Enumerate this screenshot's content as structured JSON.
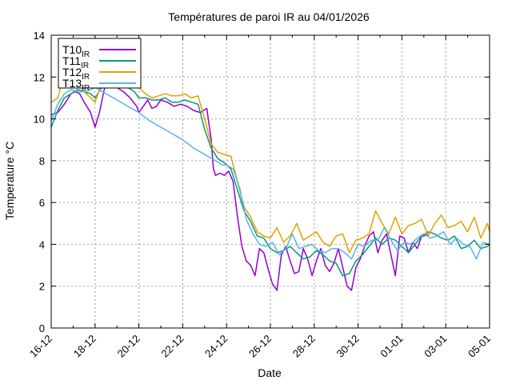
{
  "chart_data": {
    "type": "line",
    "title": "Températures de paroi IR au 04/01/2026",
    "xlabel": "Date",
    "ylabel": "Temperature °C",
    "x_unit": "days since 16-12-2025",
    "xlim": [
      0,
      20
    ],
    "ylim": [
      0,
      14
    ],
    "grid": true,
    "legend_position": "top-left",
    "x_ticks": [
      {
        "value": 0,
        "label": "16-12"
      },
      {
        "value": 2,
        "label": "18-12"
      },
      {
        "value": 4,
        "label": "20-12"
      },
      {
        "value": 6,
        "label": "22-12"
      },
      {
        "value": 8,
        "label": "24-12"
      },
      {
        "value": 10,
        "label": "26-12"
      },
      {
        "value": 12,
        "label": "28-12"
      },
      {
        "value": 14,
        "label": "30-12"
      },
      {
        "value": 16,
        "label": "01-01"
      },
      {
        "value": 18,
        "label": "03-01"
      },
      {
        "value": 20,
        "label": "05-01"
      }
    ],
    "y_ticks": [
      {
        "value": 0,
        "label": "0"
      },
      {
        "value": 2,
        "label": "2"
      },
      {
        "value": 4,
        "label": "4"
      },
      {
        "value": 6,
        "label": "6"
      },
      {
        "value": 8,
        "label": "8"
      },
      {
        "value": 10,
        "label": "10"
      },
      {
        "value": 12,
        "label": "12"
      },
      {
        "value": 14,
        "label": "14"
      }
    ],
    "series": [
      {
        "name": "T10",
        "subscript": "IR",
        "color": "#9400d3",
        "x": [
          0.0,
          0.3,
          0.6,
          0.9,
          1.1,
          1.3,
          1.5,
          1.8,
          2.0,
          2.2,
          2.5,
          2.8,
          3.0,
          3.3,
          3.6,
          3.9,
          4.0,
          4.2,
          4.4,
          4.6,
          4.8,
          5.0,
          5.3,
          5.6,
          5.9,
          6.2,
          6.5,
          6.8,
          7.1,
          7.3,
          7.4,
          7.5,
          7.7,
          7.9,
          8.1,
          8.3,
          8.5,
          8.7,
          8.9,
          9.1,
          9.3,
          9.5,
          9.7,
          9.9,
          10.1,
          10.3,
          10.5,
          10.7,
          10.9,
          11.1,
          11.3,
          11.5,
          11.7,
          11.9,
          12.1,
          12.3,
          12.5,
          12.7,
          12.9,
          13.1,
          13.3,
          13.5,
          13.7,
          13.9,
          14.1,
          14.3,
          14.5,
          14.7,
          14.9,
          15.1,
          15.3,
          15.5,
          15.7,
          15.9,
          16.1,
          16.3,
          16.5,
          16.7,
          16.9,
          17.0,
          17.2
        ],
        "y": [
          10.2,
          10.3,
          10.7,
          11.2,
          11.3,
          11.2,
          10.8,
          10.3,
          9.6,
          10.3,
          11.8,
          12.2,
          11.5,
          11.3,
          11.0,
          10.6,
          10.3,
          10.6,
          10.9,
          10.5,
          10.6,
          10.9,
          10.8,
          10.6,
          10.7,
          10.6,
          10.4,
          10.3,
          10.5,
          9.0,
          7.6,
          7.3,
          7.4,
          7.3,
          7.5,
          7.0,
          5.3,
          3.9,
          3.2,
          3.0,
          2.5,
          3.8,
          3.6,
          2.8,
          2.1,
          1.8,
          3.5,
          3.9,
          3.2,
          2.6,
          2.7,
          3.8,
          3.3,
          2.5,
          3.2,
          3.8,
          3.0,
          2.7,
          3.1,
          3.8,
          2.9,
          2.0,
          1.8,
          2.9,
          3.3,
          3.9,
          4.4,
          4.6,
          3.6,
          4.2,
          4.5,
          3.5,
          2.5,
          4.4,
          4.3,
          3.6,
          4.1,
          3.8,
          4.4,
          4.4,
          4.5
        ]
      },
      {
        "name": "T11",
        "subscript": "IR",
        "color": "#009e73",
        "x": [
          0.0,
          0.3,
          0.6,
          0.9,
          1.2,
          1.5,
          1.8,
          2.0,
          2.3,
          2.6,
          2.9,
          3.2,
          3.5,
          3.8,
          4.0,
          4.3,
          4.6,
          4.9,
          5.2,
          5.5,
          5.8,
          6.1,
          6.4,
          6.7,
          7.0,
          7.3,
          7.6,
          7.9,
          8.2,
          8.5,
          8.8,
          9.1,
          9.4,
          9.7,
          10.0,
          10.3,
          10.6,
          10.9,
          11.2,
          11.5,
          11.8,
          12.1,
          12.4,
          12.7,
          13.0,
          13.3,
          13.6,
          13.9,
          14.2,
          14.5,
          14.8,
          15.1,
          15.4,
          15.7,
          16.0,
          16.3,
          16.6,
          16.9,
          17.2,
          17.5,
          17.8,
          18.1,
          18.4,
          18.7,
          19.0,
          19.3,
          19.6,
          19.9,
          20.0
        ],
        "y": [
          9.6,
          10.4,
          11.0,
          11.2,
          11.4,
          11.3,
          11.2,
          11.0,
          11.5,
          12.0,
          11.8,
          11.7,
          11.5,
          11.3,
          11.0,
          11.0,
          10.9,
          10.9,
          11.0,
          10.8,
          10.8,
          10.9,
          10.8,
          10.7,
          9.5,
          8.6,
          8.1,
          7.9,
          7.6,
          6.6,
          5.6,
          5.1,
          4.4,
          4.3,
          3.8,
          3.6,
          3.7,
          3.9,
          3.6,
          3.3,
          3.4,
          3.7,
          3.5,
          3.2,
          3.1,
          2.5,
          2.6,
          3.2,
          3.5,
          3.9,
          4.3,
          4.0,
          4.3,
          4.2,
          3.9,
          3.6,
          4.0,
          4.4,
          4.6,
          4.5,
          4.3,
          4.2,
          4.4,
          3.8,
          3.9,
          4.2,
          3.8,
          3.9,
          4.0
        ]
      },
      {
        "name": "T12",
        "subscript": "IR",
        "color": "#e69f00",
        "x": [
          0.0,
          0.3,
          0.6,
          0.9,
          1.2,
          1.5,
          1.8,
          2.0,
          2.3,
          2.6,
          2.9,
          3.2,
          3.5,
          3.8,
          4.0,
          4.3,
          4.6,
          4.9,
          5.2,
          5.5,
          5.8,
          6.1,
          6.4,
          6.7,
          7.0,
          7.3,
          7.6,
          7.9,
          8.2,
          8.5,
          8.8,
          9.1,
          9.4,
          9.7,
          10.0,
          10.3,
          10.6,
          10.9,
          11.2,
          11.5,
          11.8,
          12.1,
          12.4,
          12.7,
          13.0,
          13.3,
          13.6,
          13.9,
          14.2,
          14.5,
          14.8,
          15.1,
          15.4,
          15.7,
          16.0,
          16.3,
          16.6,
          16.9,
          17.2,
          17.5,
          17.8,
          18.1,
          18.4,
          18.7,
          19.0,
          19.3,
          19.6,
          19.9,
          20.0
        ],
        "y": [
          10.8,
          11.0,
          12.1,
          12.3,
          11.9,
          11.3,
          11.0,
          10.8,
          11.7,
          12.5,
          12.4,
          12.2,
          12.1,
          11.9,
          11.5,
          11.2,
          11.0,
          11.1,
          11.2,
          11.1,
          11.1,
          11.2,
          11.0,
          11.1,
          10.0,
          8.8,
          8.4,
          8.3,
          8.2,
          7.0,
          5.8,
          5.3,
          4.6,
          4.4,
          4.3,
          4.8,
          4.1,
          4.4,
          5.0,
          4.2,
          4.4,
          4.6,
          4.1,
          3.9,
          4.4,
          4.5,
          3.6,
          4.2,
          4.3,
          4.5,
          5.6,
          5.0,
          4.5,
          5.3,
          4.5,
          4.9,
          5.0,
          5.2,
          4.4,
          5.0,
          5.4,
          4.8,
          4.9,
          5.1,
          4.6,
          5.3,
          4.3,
          5.0,
          4.6
        ]
      },
      {
        "name": "T13",
        "subscript": "IR",
        "color": "#56b4e9",
        "x": [
          0.0,
          0.3,
          0.6,
          0.9,
          1.2,
          1.5,
          1.8,
          2.0,
          2.5,
          3.0,
          3.5,
          4.0,
          4.5,
          5.0,
          5.5,
          6.0,
          6.5,
          7.0,
          7.5,
          7.8,
          8.0,
          8.3,
          8.6,
          8.9,
          9.2,
          9.5,
          9.8,
          10.1,
          10.4,
          10.7,
          11.0,
          11.3,
          11.6,
          11.9,
          12.2,
          12.5,
          12.8,
          13.1,
          13.4,
          13.7,
          14.0,
          14.3,
          14.6,
          14.9,
          15.2,
          15.5,
          15.8,
          16.1,
          16.4,
          16.7,
          17.0,
          17.3,
          17.6,
          17.9,
          18.2,
          18.5,
          18.8,
          19.1,
          19.4,
          19.7,
          20.0
        ],
        "y": [
          9.9,
          10.7,
          11.2,
          11.4,
          11.3,
          11.3,
          11.4,
          11.5,
          11.2,
          10.9,
          10.6,
          10.3,
          9.9,
          9.6,
          9.3,
          9.0,
          8.6,
          8.3,
          8.0,
          7.8,
          7.8,
          7.6,
          6.7,
          5.2,
          4.5,
          4.0,
          3.9,
          4.1,
          3.5,
          3.8,
          4.5,
          3.8,
          3.9,
          4.0,
          3.7,
          3.6,
          3.8,
          3.8,
          3.6,
          3.3,
          4.0,
          3.9,
          4.2,
          4.2,
          4.8,
          4.2,
          3.7,
          4.1,
          4.0,
          4.3,
          4.5,
          4.3,
          4.4,
          4.6,
          4.0,
          4.3,
          4.0,
          3.9,
          3.3,
          4.1,
          4.0
        ]
      }
    ]
  }
}
